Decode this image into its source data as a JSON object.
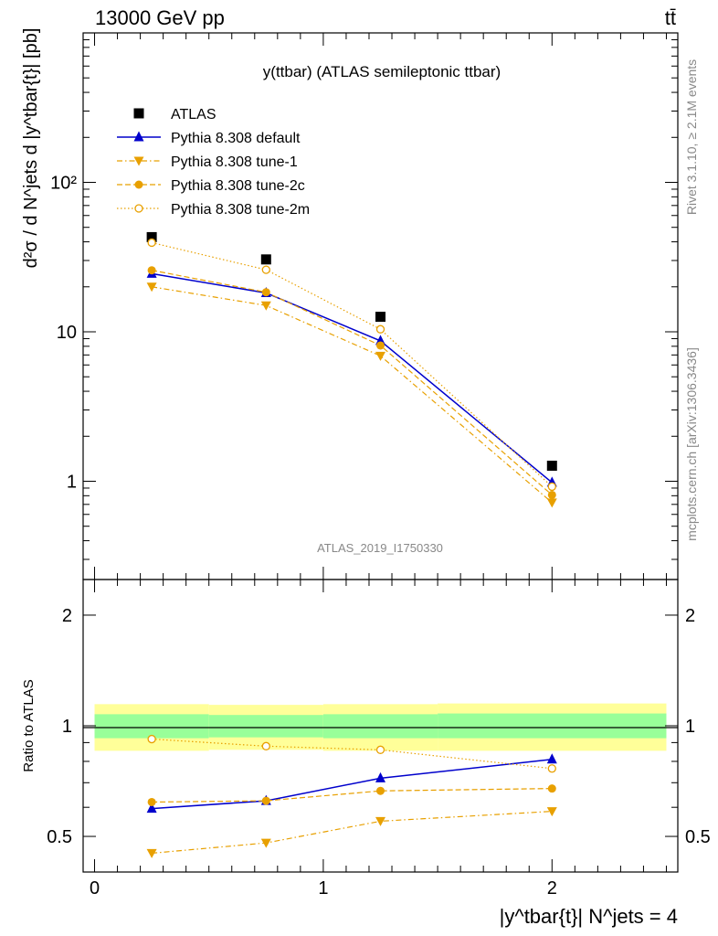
{
  "header": {
    "left": "13000 GeV pp",
    "right": "tt̄"
  },
  "side": {
    "rivet": "Rivet 3.1.10, ≥ 2.1M events",
    "mcplots": "mcplots.cern.ch [arXiv:1306.3436]"
  },
  "colors": {
    "atlas": "#000000",
    "default": "#0000cc",
    "tune": "#e8a000",
    "band_inner": "#99ff99",
    "band_outer": "#ffff99"
  },
  "chart_data": [
    {
      "type": "scatter",
      "title": "y(ttbar) (ATLAS semileptonic ttbar)",
      "watermark": "ATLAS_2019_I1750330",
      "ylabel": "d²σ / d N^jets d |y^tbar{t}| [pb]",
      "yscale": "log",
      "xlim": [
        -0.05,
        2.55
      ],
      "ylim": [
        0.22,
        1000
      ],
      "y_ticks": [
        {
          "value": 1,
          "label": "1"
        },
        {
          "value": 10,
          "label": "10"
        },
        {
          "value": 100,
          "label": "10²"
        }
      ],
      "legend_position": "top-left",
      "x": [
        0.25,
        0.75,
        1.25,
        2.0
      ],
      "series": [
        {
          "name": "ATLAS",
          "marker": "square",
          "line": "none",
          "values": [
            43,
            30.5,
            12.6,
            1.27
          ]
        },
        {
          "name": "Pythia 8.308 default",
          "marker": "triangle-up",
          "line": "solid",
          "values": [
            24.5,
            18.2,
            8.7,
            0.98
          ]
        },
        {
          "name": "Pythia 8.308 tune-1",
          "marker": "triangle-down",
          "line": "dashdot",
          "values": [
            20,
            15,
            6.9,
            0.72
          ]
        },
        {
          "name": "Pythia 8.308 tune-2c",
          "marker": "circle",
          "line": "dashed",
          "values": [
            25.8,
            18.4,
            8.1,
            0.81
          ]
        },
        {
          "name": "Pythia 8.308 tune-2m",
          "marker": "circle-open",
          "line": "dotted",
          "values": [
            39.5,
            26,
            10.4,
            0.92
          ]
        }
      ]
    },
    {
      "type": "scatter",
      "ylabel": "Ratio to ATLAS",
      "yscale": "log",
      "xlabel": "|y^tbar{t}| N^jets = 4",
      "xlim": [
        -0.05,
        2.55
      ],
      "ylim": [
        0.4,
        2.5
      ],
      "x_ticks": [
        {
          "value": 0,
          "label": "0"
        },
        {
          "value": 1,
          "label": "1"
        },
        {
          "value": 2,
          "label": "2"
        }
      ],
      "y_ticks": [
        {
          "value": 0.5,
          "label": "0.5"
        },
        {
          "value": 1,
          "label": "1"
        },
        {
          "value": 2,
          "label": "2"
        }
      ],
      "reference_bands": [
        {
          "x_from": 0,
          "x_to": 0.5,
          "inner": [
            0.925,
            1.075
          ],
          "outer": [
            0.855,
            1.145
          ]
        },
        {
          "x_from": 0.5,
          "x_to": 1.0,
          "inner": [
            0.93,
            1.07
          ],
          "outer": [
            0.86,
            1.14
          ]
        },
        {
          "x_from": 1.0,
          "x_to": 1.5,
          "inner": [
            0.925,
            1.075
          ],
          "outer": [
            0.855,
            1.145
          ]
        },
        {
          "x_from": 1.5,
          "x_to": 2.5,
          "inner": [
            0.925,
            1.08
          ],
          "outer": [
            0.855,
            1.15
          ]
        }
      ],
      "x": [
        0.25,
        0.75,
        1.25,
        2.0
      ],
      "series": [
        {
          "name": "Pythia 8.308 default",
          "marker": "triangle-up",
          "line": "solid",
          "values": [
            0.595,
            0.625,
            0.72,
            0.81
          ]
        },
        {
          "name": "Pythia 8.308 tune-1",
          "marker": "triangle-down",
          "line": "dashdot",
          "values": [
            0.45,
            0.48,
            0.55,
            0.585
          ]
        },
        {
          "name": "Pythia 8.308 tune-2c",
          "marker": "circle",
          "line": "dashed",
          "values": [
            0.62,
            0.625,
            0.665,
            0.675
          ]
        },
        {
          "name": "Pythia 8.308 tune-2m",
          "marker": "circle-open",
          "line": "dotted",
          "values": [
            0.92,
            0.88,
            0.86,
            0.765
          ]
        }
      ]
    }
  ]
}
